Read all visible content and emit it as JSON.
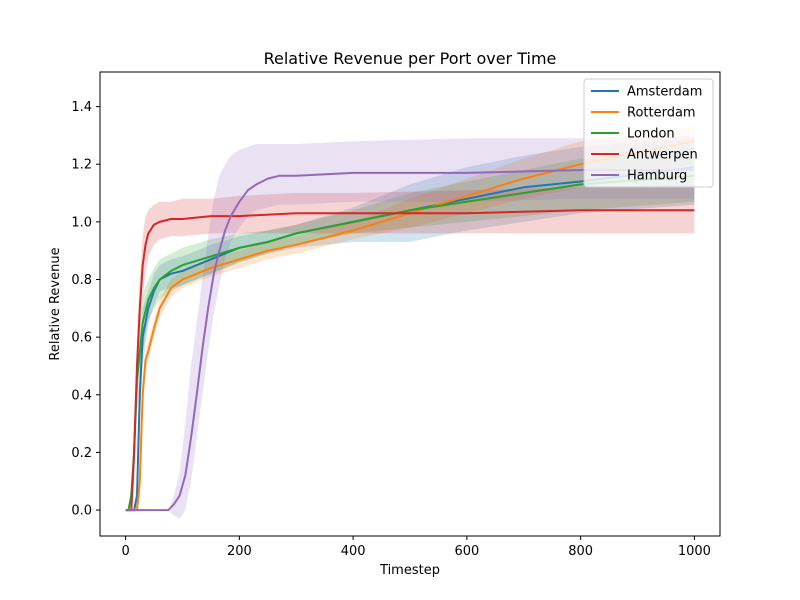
{
  "chart_data": {
    "type": "line",
    "title": "Relative Revenue per Port over Time",
    "xlabel": "Timestep",
    "ylabel": "Relative Revenue",
    "xlim": [
      -45,
      1045
    ],
    "ylim": [
      -0.09,
      1.52
    ],
    "xticks": [
      0,
      200,
      400,
      600,
      800,
      1000
    ],
    "yticks": [
      0.0,
      0.2,
      0.4,
      0.6,
      0.8,
      1.0,
      1.2,
      1.4
    ],
    "xtick_labels": [
      "0",
      "200",
      "400",
      "600",
      "800",
      "1000"
    ],
    "ytick_labels": [
      "0.0",
      "0.2",
      "0.4",
      "0.6",
      "0.8",
      "1.0",
      "1.2",
      "1.4"
    ],
    "grid": false,
    "legend_position": "top-right",
    "shaded_band": "spread",
    "series": [
      {
        "name": "Amsterdam",
        "color": "#1f77b4",
        "points": [
          [
            0,
            0
          ],
          [
            15,
            0.0
          ],
          [
            20,
            0.05
          ],
          [
            25,
            0.4
          ],
          [
            30,
            0.6
          ],
          [
            40,
            0.7
          ],
          [
            50,
            0.76
          ],
          [
            60,
            0.8
          ],
          [
            80,
            0.82
          ],
          [
            100,
            0.83
          ],
          [
            150,
            0.87
          ],
          [
            200,
            0.91
          ],
          [
            250,
            0.93
          ],
          [
            300,
            0.96
          ],
          [
            400,
            1.0
          ],
          [
            500,
            1.04
          ],
          [
            600,
            1.08
          ],
          [
            700,
            1.12
          ],
          [
            800,
            1.14
          ],
          [
            1000,
            1.19
          ]
        ],
        "band": [
          [
            0,
            0,
            0
          ],
          [
            15,
            0,
            0
          ],
          [
            20,
            0,
            0.1
          ],
          [
            25,
            0.3,
            0.5
          ],
          [
            30,
            0.5,
            0.7
          ],
          [
            40,
            0.65,
            0.76
          ],
          [
            50,
            0.71,
            0.82
          ],
          [
            60,
            0.76,
            0.85
          ],
          [
            80,
            0.77,
            0.87
          ],
          [
            100,
            0.78,
            0.88
          ],
          [
            150,
            0.82,
            0.92
          ],
          [
            200,
            0.86,
            0.95
          ],
          [
            250,
            0.89,
            0.97
          ],
          [
            300,
            0.91,
            0.99
          ],
          [
            400,
            0.93,
            1.05
          ],
          [
            500,
            0.93,
            1.13
          ],
          [
            600,
            0.97,
            1.19
          ],
          [
            700,
            1.0,
            1.23
          ],
          [
            800,
            1.03,
            1.26
          ],
          [
            1000,
            1.06,
            1.29
          ]
        ]
      },
      {
        "name": "Rotterdam",
        "color": "#ff7f0e",
        "points": [
          [
            0,
            0
          ],
          [
            20,
            0.0
          ],
          [
            25,
            0.1
          ],
          [
            30,
            0.4
          ],
          [
            35,
            0.52
          ],
          [
            40,
            0.55
          ],
          [
            50,
            0.63
          ],
          [
            60,
            0.7
          ],
          [
            80,
            0.77
          ],
          [
            100,
            0.8
          ],
          [
            150,
            0.84
          ],
          [
            200,
            0.87
          ],
          [
            250,
            0.9
          ],
          [
            300,
            0.92
          ],
          [
            400,
            0.97
          ],
          [
            500,
            1.03
          ],
          [
            600,
            1.09
          ],
          [
            700,
            1.15
          ],
          [
            800,
            1.2
          ],
          [
            1000,
            1.28
          ]
        ],
        "band": [
          [
            0,
            0,
            0
          ],
          [
            20,
            0,
            0
          ],
          [
            25,
            0.05,
            0.15
          ],
          [
            30,
            0.35,
            0.45
          ],
          [
            35,
            0.48,
            0.56
          ],
          [
            40,
            0.52,
            0.59
          ],
          [
            50,
            0.6,
            0.66
          ],
          [
            60,
            0.67,
            0.73
          ],
          [
            80,
            0.74,
            0.8
          ],
          [
            100,
            0.77,
            0.83
          ],
          [
            150,
            0.81,
            0.87
          ],
          [
            200,
            0.84,
            0.9
          ],
          [
            250,
            0.87,
            0.93
          ],
          [
            300,
            0.89,
            0.95
          ],
          [
            400,
            0.94,
            1.0
          ],
          [
            500,
            0.98,
            1.08
          ],
          [
            600,
            1.03,
            1.15
          ],
          [
            700,
            1.08,
            1.22
          ],
          [
            800,
            1.12,
            1.28
          ],
          [
            1000,
            1.2,
            1.33
          ]
        ]
      },
      {
        "name": "London",
        "color": "#2ca02c",
        "points": [
          [
            0,
            0
          ],
          [
            5,
            0.0
          ],
          [
            10,
            0.05
          ],
          [
            15,
            0.2
          ],
          [
            20,
            0.45
          ],
          [
            30,
            0.65
          ],
          [
            40,
            0.73
          ],
          [
            50,
            0.77
          ],
          [
            60,
            0.8
          ],
          [
            80,
            0.83
          ],
          [
            100,
            0.85
          ],
          [
            150,
            0.88
          ],
          [
            200,
            0.91
          ],
          [
            250,
            0.93
          ],
          [
            300,
            0.96
          ],
          [
            400,
            1.0
          ],
          [
            500,
            1.04
          ],
          [
            600,
            1.07
          ],
          [
            700,
            1.1
          ],
          [
            800,
            1.13
          ],
          [
            1000,
            1.16
          ]
        ],
        "band": [
          [
            0,
            0,
            0
          ],
          [
            5,
            0,
            0
          ],
          [
            10,
            0,
            0.1
          ],
          [
            15,
            0.1,
            0.3
          ],
          [
            20,
            0.35,
            0.55
          ],
          [
            30,
            0.55,
            0.75
          ],
          [
            40,
            0.65,
            0.8
          ],
          [
            50,
            0.7,
            0.84
          ],
          [
            60,
            0.73,
            0.87
          ],
          [
            80,
            0.76,
            0.89
          ],
          [
            100,
            0.78,
            0.91
          ],
          [
            150,
            0.82,
            0.94
          ],
          [
            200,
            0.86,
            0.96
          ],
          [
            250,
            0.89,
            0.97
          ],
          [
            300,
            0.92,
            0.99
          ],
          [
            400,
            0.96,
            1.04
          ],
          [
            500,
            0.98,
            1.1
          ],
          [
            600,
            1.0,
            1.14
          ],
          [
            700,
            1.02,
            1.18
          ],
          [
            800,
            1.04,
            1.22
          ],
          [
            1000,
            1.07,
            1.26
          ]
        ]
      },
      {
        "name": "Antwerpen",
        "color": "#d62728",
        "points": [
          [
            0,
            0
          ],
          [
            10,
            0.0
          ],
          [
            15,
            0.2
          ],
          [
            20,
            0.5
          ],
          [
            25,
            0.7
          ],
          [
            30,
            0.85
          ],
          [
            35,
            0.92
          ],
          [
            40,
            0.96
          ],
          [
            50,
            0.99
          ],
          [
            60,
            1.0
          ],
          [
            80,
            1.01
          ],
          [
            100,
            1.01
          ],
          [
            150,
            1.02
          ],
          [
            200,
            1.02
          ],
          [
            300,
            1.03
          ],
          [
            400,
            1.03
          ],
          [
            600,
            1.03
          ],
          [
            800,
            1.04
          ],
          [
            1000,
            1.04
          ]
        ],
        "band": [
          [
            0,
            0,
            0
          ],
          [
            10,
            0,
            0
          ],
          [
            15,
            0.1,
            0.3
          ],
          [
            20,
            0.4,
            0.6
          ],
          [
            25,
            0.6,
            0.8
          ],
          [
            30,
            0.75,
            0.95
          ],
          [
            35,
            0.82,
            1.02
          ],
          [
            40,
            0.88,
            1.04
          ],
          [
            50,
            0.92,
            1.06
          ],
          [
            60,
            0.94,
            1.07
          ],
          [
            80,
            0.95,
            1.07
          ],
          [
            100,
            0.95,
            1.08
          ],
          [
            150,
            0.96,
            1.08
          ],
          [
            200,
            0.96,
            1.09
          ],
          [
            300,
            0.96,
            1.1
          ],
          [
            400,
            0.96,
            1.1
          ],
          [
            600,
            0.96,
            1.11
          ],
          [
            800,
            0.96,
            1.12
          ],
          [
            1000,
            0.96,
            1.13
          ]
        ]
      },
      {
        "name": "Hamburg",
        "color": "#9467bd",
        "points": [
          [
            0,
            0
          ],
          [
            75,
            0.0
          ],
          [
            85,
            0.02
          ],
          [
            95,
            0.05
          ],
          [
            105,
            0.12
          ],
          [
            115,
            0.25
          ],
          [
            125,
            0.4
          ],
          [
            135,
            0.56
          ],
          [
            145,
            0.7
          ],
          [
            155,
            0.82
          ],
          [
            165,
            0.9
          ],
          [
            175,
            0.97
          ],
          [
            185,
            1.02
          ],
          [
            200,
            1.07
          ],
          [
            215,
            1.11
          ],
          [
            230,
            1.13
          ],
          [
            250,
            1.15
          ],
          [
            270,
            1.16
          ],
          [
            300,
            1.16
          ],
          [
            400,
            1.17
          ],
          [
            600,
            1.17
          ],
          [
            800,
            1.18
          ],
          [
            1000,
            1.18
          ]
        ],
        "band": [
          [
            0,
            0,
            0
          ],
          [
            75,
            0,
            0
          ],
          [
            85,
            -0.02,
            0.05
          ],
          [
            95,
            -0.03,
            0.13
          ],
          [
            105,
            0.0,
            0.3
          ],
          [
            115,
            0.1,
            0.5
          ],
          [
            125,
            0.25,
            0.65
          ],
          [
            135,
            0.4,
            0.8
          ],
          [
            145,
            0.55,
            0.95
          ],
          [
            155,
            0.68,
            1.08
          ],
          [
            165,
            0.78,
            1.16
          ],
          [
            175,
            0.87,
            1.2
          ],
          [
            185,
            0.93,
            1.23
          ],
          [
            200,
            0.98,
            1.25
          ],
          [
            215,
            1.02,
            1.26
          ],
          [
            230,
            1.04,
            1.27
          ],
          [
            250,
            1.05,
            1.27
          ],
          [
            270,
            1.06,
            1.27
          ],
          [
            300,
            1.06,
            1.27
          ],
          [
            400,
            1.07,
            1.28
          ],
          [
            600,
            1.07,
            1.29
          ],
          [
            800,
            1.08,
            1.29
          ],
          [
            1000,
            1.08,
            1.3
          ]
        ]
      }
    ]
  }
}
